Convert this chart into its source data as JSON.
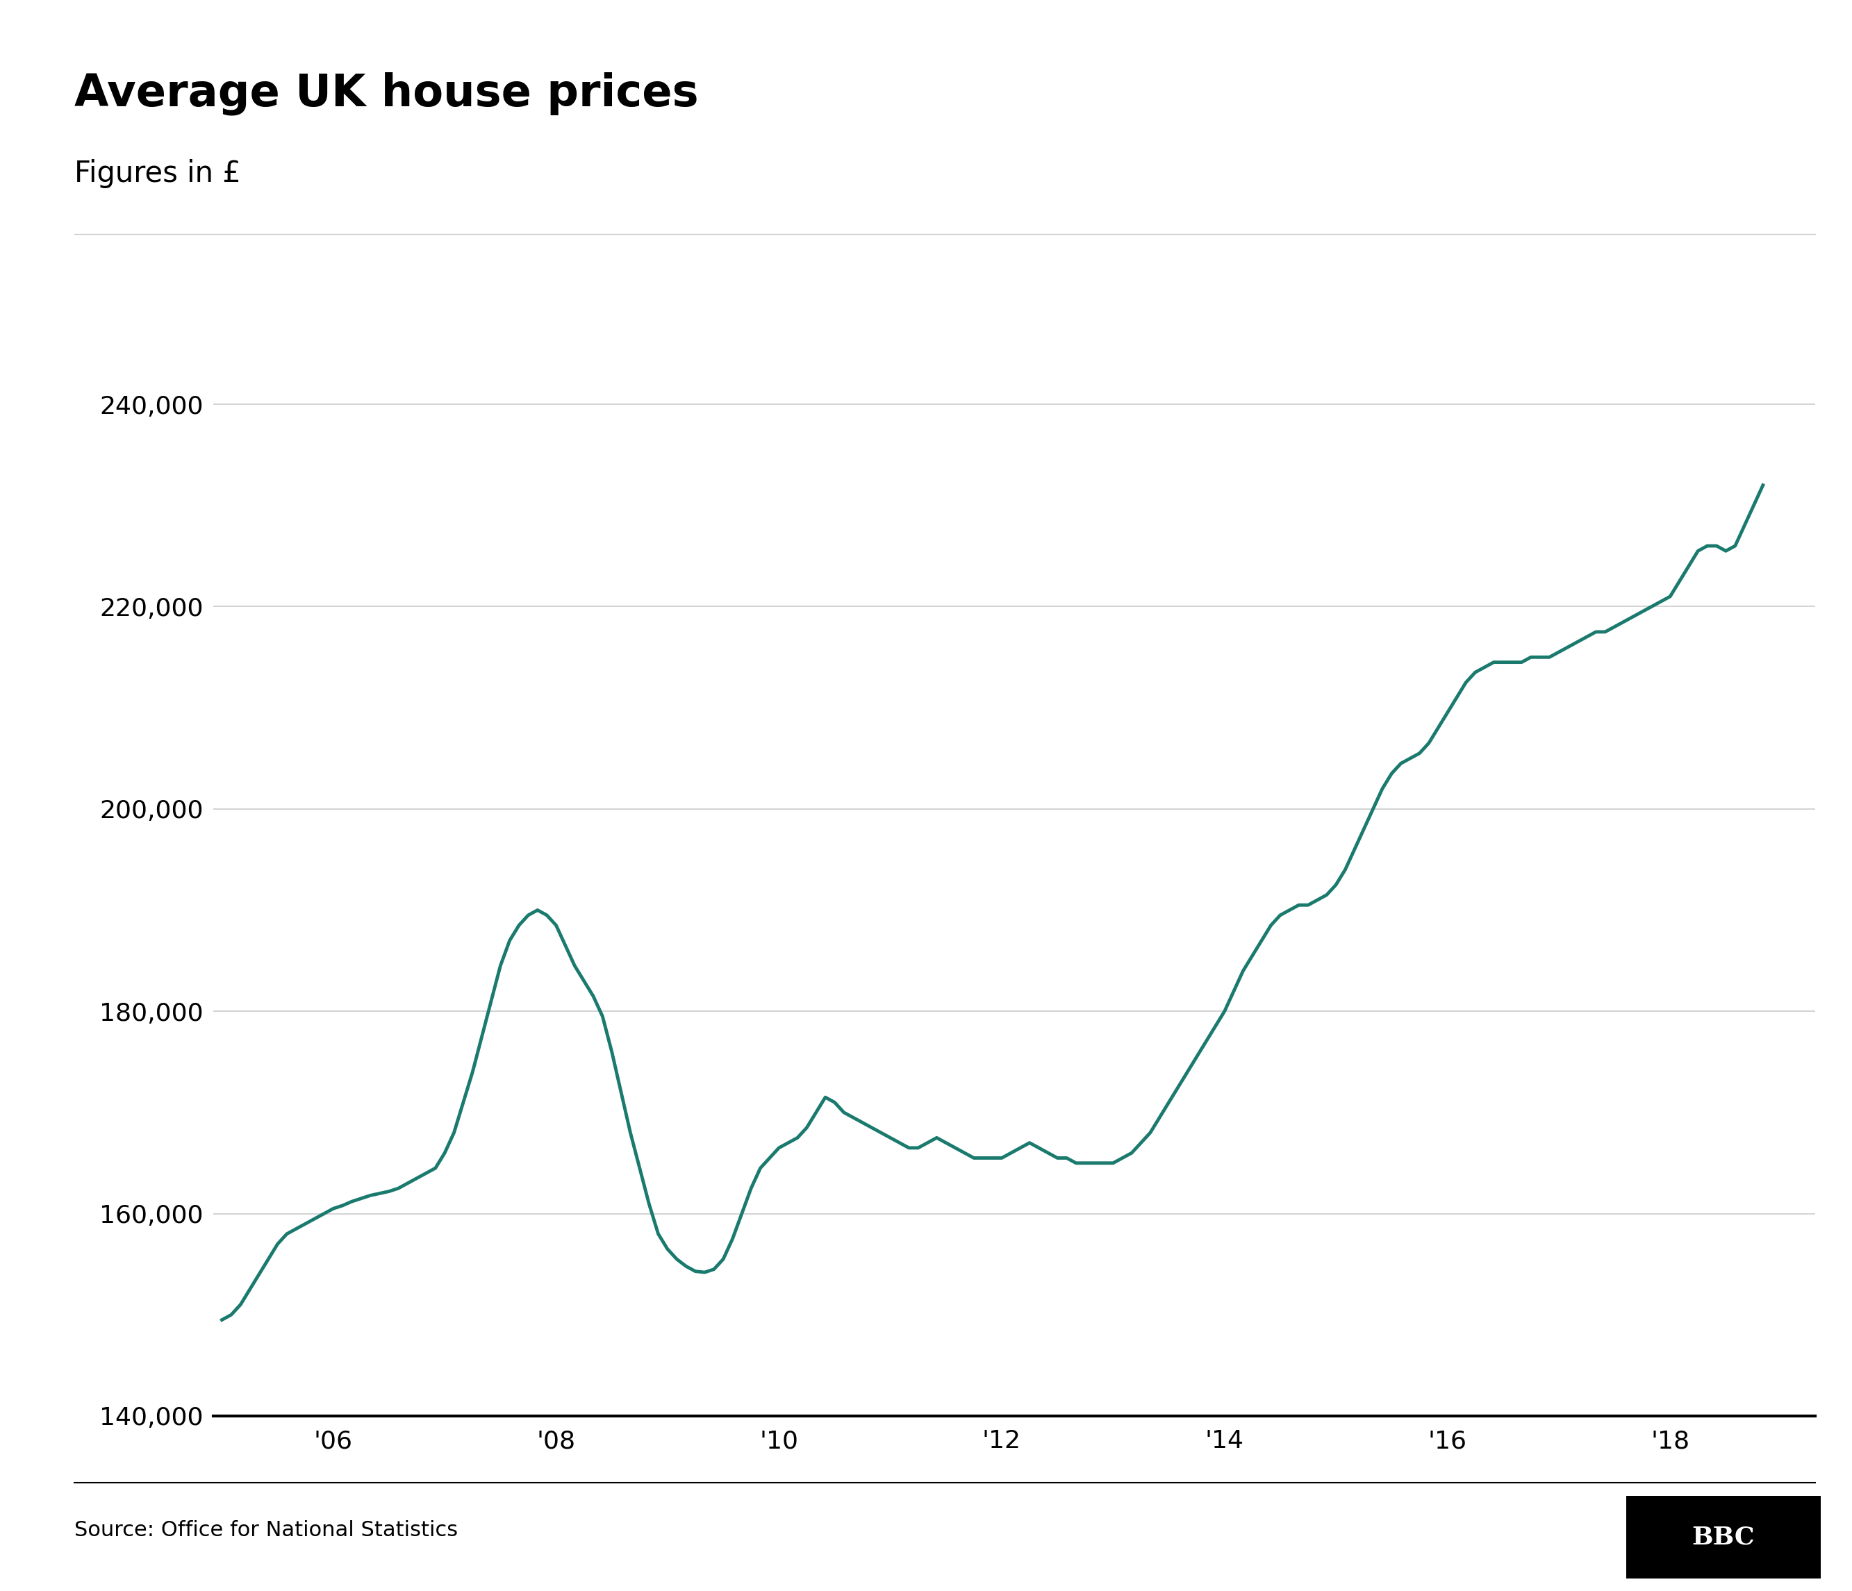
{
  "title": "Average UK house prices",
  "subtitle": "Figures in £",
  "source": "Source: Office for National Statistics",
  "line_color": "#1a7a6e",
  "background_color": "#ffffff",
  "ylim": [
    140000,
    243000
  ],
  "yticks": [
    140000,
    160000,
    180000,
    200000,
    220000,
    240000
  ],
  "xtick_labels": [
    "'06",
    "'08",
    "'10",
    "'12",
    "'14",
    "'16",
    "'18"
  ],
  "title_fontsize": 46,
  "subtitle_fontsize": 30,
  "tick_fontsize": 26,
  "source_fontsize": 22,
  "line_width": 3.5,
  "data": {
    "2005-01": 149500,
    "2005-02": 150000,
    "2005-03": 151000,
    "2005-04": 152500,
    "2005-05": 154000,
    "2005-06": 155500,
    "2005-07": 157000,
    "2005-08": 158000,
    "2005-09": 158500,
    "2005-10": 159000,
    "2005-11": 159500,
    "2005-12": 160000,
    "2006-01": 160500,
    "2006-02": 160800,
    "2006-03": 161200,
    "2006-04": 161500,
    "2006-05": 161800,
    "2006-06": 162000,
    "2006-07": 162200,
    "2006-08": 162500,
    "2006-09": 163000,
    "2006-10": 163500,
    "2006-11": 164000,
    "2006-12": 164500,
    "2007-01": 166000,
    "2007-02": 168000,
    "2007-03": 171000,
    "2007-04": 174000,
    "2007-05": 177500,
    "2007-06": 181000,
    "2007-07": 184500,
    "2007-08": 187000,
    "2007-09": 188500,
    "2007-10": 189500,
    "2007-11": 190000,
    "2007-12": 189500,
    "2008-01": 188500,
    "2008-02": 186500,
    "2008-03": 184500,
    "2008-04": 183000,
    "2008-05": 181500,
    "2008-06": 179500,
    "2008-07": 176000,
    "2008-08": 172000,
    "2008-09": 168000,
    "2008-10": 164500,
    "2008-11": 161000,
    "2008-12": 158000,
    "2009-01": 156500,
    "2009-02": 155500,
    "2009-03": 154800,
    "2009-04": 154300,
    "2009-05": 154200,
    "2009-06": 154500,
    "2009-07": 155500,
    "2009-08": 157500,
    "2009-09": 160000,
    "2009-10": 162500,
    "2009-11": 164500,
    "2009-12": 165500,
    "2010-01": 166500,
    "2010-02": 167000,
    "2010-03": 167500,
    "2010-04": 168500,
    "2010-05": 170000,
    "2010-06": 171500,
    "2010-07": 171000,
    "2010-08": 170000,
    "2010-09": 169500,
    "2010-10": 169000,
    "2010-11": 168500,
    "2010-12": 168000,
    "2011-01": 167500,
    "2011-02": 167000,
    "2011-03": 166500,
    "2011-04": 166500,
    "2011-05": 167000,
    "2011-06": 167500,
    "2011-07": 167000,
    "2011-08": 166500,
    "2011-09": 166000,
    "2011-10": 165500,
    "2011-11": 165500,
    "2011-12": 165500,
    "2012-01": 165500,
    "2012-02": 166000,
    "2012-03": 166500,
    "2012-04": 167000,
    "2012-05": 166500,
    "2012-06": 166000,
    "2012-07": 165500,
    "2012-08": 165500,
    "2012-09": 165000,
    "2012-10": 165000,
    "2012-11": 165000,
    "2012-12": 165000,
    "2013-01": 165000,
    "2013-02": 165500,
    "2013-03": 166000,
    "2013-04": 167000,
    "2013-05": 168000,
    "2013-06": 169500,
    "2013-07": 171000,
    "2013-08": 172500,
    "2013-09": 174000,
    "2013-10": 175500,
    "2013-11": 177000,
    "2013-12": 178500,
    "2014-01": 180000,
    "2014-02": 182000,
    "2014-03": 184000,
    "2014-04": 185500,
    "2014-05": 187000,
    "2014-06": 188500,
    "2014-07": 189500,
    "2014-08": 190000,
    "2014-09": 190500,
    "2014-10": 190500,
    "2014-11": 191000,
    "2014-12": 191500,
    "2015-01": 192500,
    "2015-02": 194000,
    "2015-03": 196000,
    "2015-04": 198000,
    "2015-05": 200000,
    "2015-06": 202000,
    "2015-07": 203500,
    "2015-08": 204500,
    "2015-09": 205000,
    "2015-10": 205500,
    "2015-11": 206500,
    "2015-12": 208000,
    "2016-01": 209500,
    "2016-02": 211000,
    "2016-03": 212500,
    "2016-04": 213500,
    "2016-05": 214000,
    "2016-06": 214500,
    "2016-07": 214500,
    "2016-08": 214500,
    "2016-09": 214500,
    "2016-10": 215000,
    "2016-11": 215000,
    "2016-12": 215000,
    "2017-01": 215500,
    "2017-02": 216000,
    "2017-03": 216500,
    "2017-04": 217000,
    "2017-05": 217500,
    "2017-06": 217500,
    "2017-07": 218000,
    "2017-08": 218500,
    "2017-09": 219000,
    "2017-10": 219500,
    "2017-11": 220000,
    "2017-12": 220500,
    "2018-01": 221000,
    "2018-02": 222500,
    "2018-03": 224000,
    "2018-04": 225500,
    "2018-05": 226000,
    "2018-06": 226000,
    "2018-07": 225500,
    "2018-08": 226000,
    "2018-09": 228000,
    "2018-10": 230000,
    "2018-11": 232000
  }
}
